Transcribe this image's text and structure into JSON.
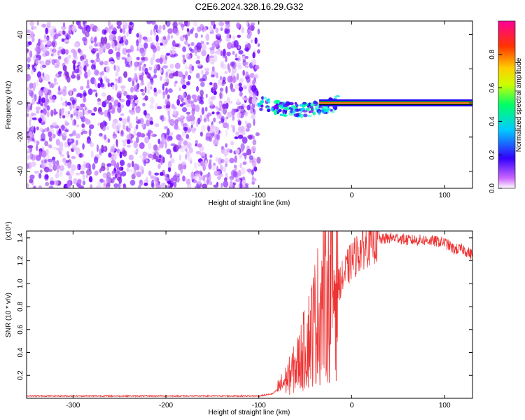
{
  "title": "C2E6.2024.328.16.29.G32",
  "chart_data": [
    {
      "type": "heatmap",
      "title": "C2E6.2024.328.16.29.G32",
      "xlabel": "Height of straight line (km)",
      "ylabel": "Frequency (Hz)",
      "xlim": [
        -350,
        130
      ],
      "ylim": [
        -50,
        48
      ],
      "x_ticks": [
        -300,
        -200,
        -100,
        0,
        100
      ],
      "y_ticks": [
        -40,
        -20,
        0,
        20,
        40
      ],
      "colorbar": {
        "label": "Normalized spectral amplitude",
        "range": [
          0.0,
          1.0
        ],
        "ticks": [
          "0.0",
          "0.2",
          "0.4",
          "0.6",
          "0.8"
        ],
        "colors": [
          "#ffffff",
          "#cc66ff",
          "#3300ff",
          "#00ccff",
          "#00ff66",
          "#ccff00",
          "#ffcc00",
          "#ff3300",
          "#ff0099"
        ]
      },
      "regions": [
        {
          "description": "broadband noise",
          "x_range": [
            -350,
            -100
          ],
          "y_range": [
            -50,
            48
          ],
          "amplitude": 0.15
        },
        {
          "description": "transition band",
          "x_range": [
            -100,
            -15
          ],
          "y_center": [
            -5,
            0
          ],
          "amplitude": 0.4
        },
        {
          "description": "narrow carrier line",
          "x_range": [
            -15,
            130
          ],
          "y_center": 0,
          "amplitude": 0.9
        }
      ]
    },
    {
      "type": "line",
      "xlabel": "Height of straight line (km)",
      "ylabel": "SNR (10 * v/v)",
      "y_multiplier": "(x10⁴)",
      "xlim": [
        -350,
        130
      ],
      "ylim": [
        0,
        1.46
      ],
      "x_ticks": [
        -300,
        -200,
        -100,
        0,
        100
      ],
      "y_ticks": [
        0.2,
        0.4,
        0.6,
        0.8,
        1.0,
        1.2,
        1.4
      ],
      "color": "#ee3333",
      "series": [
        {
          "x": [
            -350,
            -300,
            -250,
            -200,
            -150,
            -100,
            -85,
            -70,
            -60,
            -50,
            -40,
            -30,
            -20,
            -10,
            0,
            10,
            20,
            30,
            40,
            50,
            60,
            70,
            80,
            90,
            100,
            110,
            120,
            130
          ],
          "y": [
            0.02,
            0.02,
            0.02,
            0.02,
            0.02,
            0.02,
            0.04,
            0.15,
            0.25,
            0.4,
            0.6,
            0.8,
            0.9,
            1.05,
            1.2,
            1.3,
            1.36,
            1.38,
            1.4,
            1.4,
            1.38,
            1.38,
            1.38,
            1.37,
            1.36,
            1.3,
            1.3,
            1.25
          ]
        }
      ]
    }
  ]
}
